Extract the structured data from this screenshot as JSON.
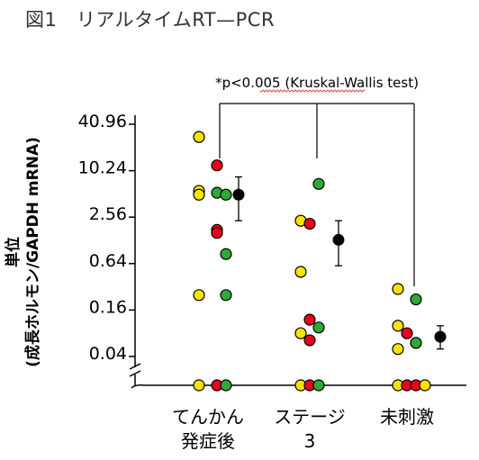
{
  "figure_title": "図1　リアルタイムRT—PCR",
  "colors": {
    "yellow": "#f7e300",
    "red": "#e8001c",
    "green": "#2ea836",
    "black": "#000000",
    "annotation_underline": "#e04040"
  },
  "chart_data": {
    "type": "scatter",
    "title": "",
    "annotation": "*p<0.005 (Kruskal-Wallis test)",
    "annotation_underlined_word": "Kruskal-Wallis",
    "ylabel_line1": "単位",
    "ylabel_line2": "(成長ホルモン/GAPDH mRNA)",
    "y_scale": "log2",
    "y_ticks": [
      0.04,
      0.16,
      0.64,
      2.56,
      10.24,
      40.96
    ],
    "y_tick_labels": [
      "0.04",
      "0.16",
      "0.64",
      "2.56",
      "10.24",
      "40.96"
    ],
    "y_axis_break": true,
    "below_detection_value": 0.009,
    "grid": false,
    "categories": [
      {
        "line1": "てんかん",
        "line2": "発症後"
      },
      {
        "line1": "ステージ",
        "line2": "3"
      },
      {
        "line1": "未刺激",
        "line2": ""
      }
    ],
    "groups": [
      {
        "points": [
          {
            "y": 28,
            "color": "yellow",
            "offset": -1
          },
          {
            "y": 12,
            "color": "red",
            "offset": 1
          },
          {
            "y": 5.6,
            "color": "yellow",
            "offset": -1
          },
          {
            "y": 5.0,
            "color": "yellow",
            "offset": -1
          },
          {
            "y": 5.3,
            "color": "green",
            "offset": 1
          },
          {
            "y": 5.0,
            "color": "green",
            "offset": 2
          },
          {
            "y": 1.75,
            "color": "red",
            "offset": 1
          },
          {
            "y": 1.6,
            "color": "red",
            "offset": 1
          },
          {
            "y": 0.85,
            "color": "green",
            "offset": 2
          },
          {
            "y": 0.25,
            "color": "yellow",
            "offset": -1
          },
          {
            "y": 0.25,
            "color": "green",
            "offset": 2
          },
          {
            "y": 0.009,
            "color": "yellow",
            "offset": -1
          },
          {
            "y": 0.009,
            "color": "red",
            "offset": 1
          },
          {
            "y": 0.009,
            "color": "green",
            "offset": 2
          }
        ],
        "mean": 5.0,
        "err_low": 2.3,
        "err_high": 8.5
      },
      {
        "points": [
          {
            "y": 6.9,
            "color": "green",
            "offset": 1
          },
          {
            "y": 2.3,
            "color": "yellow",
            "offset": -1
          },
          {
            "y": 2.1,
            "color": "red",
            "offset": 0
          },
          {
            "y": 0.5,
            "color": "yellow",
            "offset": -1
          },
          {
            "y": 0.12,
            "color": "red",
            "offset": 0
          },
          {
            "y": 0.095,
            "color": "green",
            "offset": 1
          },
          {
            "y": 0.08,
            "color": "yellow",
            "offset": -1
          },
          {
            "y": 0.065,
            "color": "red",
            "offset": 0
          },
          {
            "y": 0.009,
            "color": "yellow",
            "offset": -1
          },
          {
            "y": 0.009,
            "color": "red",
            "offset": 0
          },
          {
            "y": 0.009,
            "color": "green",
            "offset": 1
          }
        ],
        "mean": 1.3,
        "err_low": 0.6,
        "err_high": 2.3
      },
      {
        "points": [
          {
            "y": 0.3,
            "color": "yellow",
            "offset": -1
          },
          {
            "y": 0.22,
            "color": "green",
            "offset": 1
          },
          {
            "y": 0.1,
            "color": "yellow",
            "offset": -1
          },
          {
            "y": 0.08,
            "color": "red",
            "offset": 0
          },
          {
            "y": 0.06,
            "color": "green",
            "offset": 1
          },
          {
            "y": 0.05,
            "color": "yellow",
            "offset": -1
          },
          {
            "y": 0.009,
            "color": "yellow",
            "offset": -1
          },
          {
            "y": 0.009,
            "color": "red",
            "offset": 0
          },
          {
            "y": 0.009,
            "color": "red",
            "offset": 1
          },
          {
            "y": 0.009,
            "color": "yellow",
            "offset": 2
          }
        ],
        "mean": 0.072,
        "err_low": 0.05,
        "err_high": 0.1
      }
    ]
  }
}
